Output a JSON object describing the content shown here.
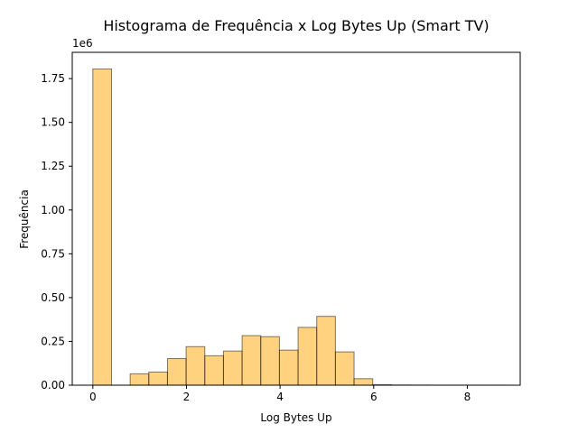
{
  "chart_data": {
    "type": "bar",
    "title": "Histograma de Frequência x Log Bytes Up (Smart TV)",
    "xlabel": "Log Bytes Up",
    "ylabel": "Frequência",
    "y_offset_text": "1e6",
    "xlim": [
      -0.44,
      9.13
    ],
    "ylim": [
      0,
      1.9
    ],
    "x_ticks": [
      0,
      2,
      4,
      6,
      8
    ],
    "x_tick_labels": [
      "0",
      "2",
      "4",
      "6",
      "8"
    ],
    "y_ticks": [
      0,
      0.25,
      0.5,
      0.75,
      1.0,
      1.25,
      1.5,
      1.75
    ],
    "y_tick_labels": [
      "0.00",
      "0.25",
      "0.50",
      "0.75",
      "1.00",
      "1.25",
      "1.50",
      "1.75"
    ],
    "y_unit_multiplier": 1000000,
    "grid": false,
    "bar_color": "#ffa500",
    "bar_alpha": 0.5,
    "edge_color": "#000000",
    "bin_edges": [
      0,
      0.3986,
      0.7973,
      1.1959,
      1.5945,
      1.9932,
      2.3918,
      2.7905,
      3.1891,
      3.5877,
      3.9864,
      4.385,
      4.7836,
      5.1823,
      5.5809,
      5.9795,
      6.3782,
      6.7768,
      7.1755,
      7.5741,
      7.9727,
      8.3714,
      8.77
    ],
    "values": [
      1.805,
      0,
      0.065,
      0.075,
      0.152,
      0.22,
      0.168,
      0.195,
      0.283,
      0.277,
      0.2,
      0.33,
      0.393,
      0.19,
      0.037,
      0.003,
      0.001,
      0.0005,
      0.0003,
      0.0002,
      0.0002,
      0.0002
    ]
  }
}
